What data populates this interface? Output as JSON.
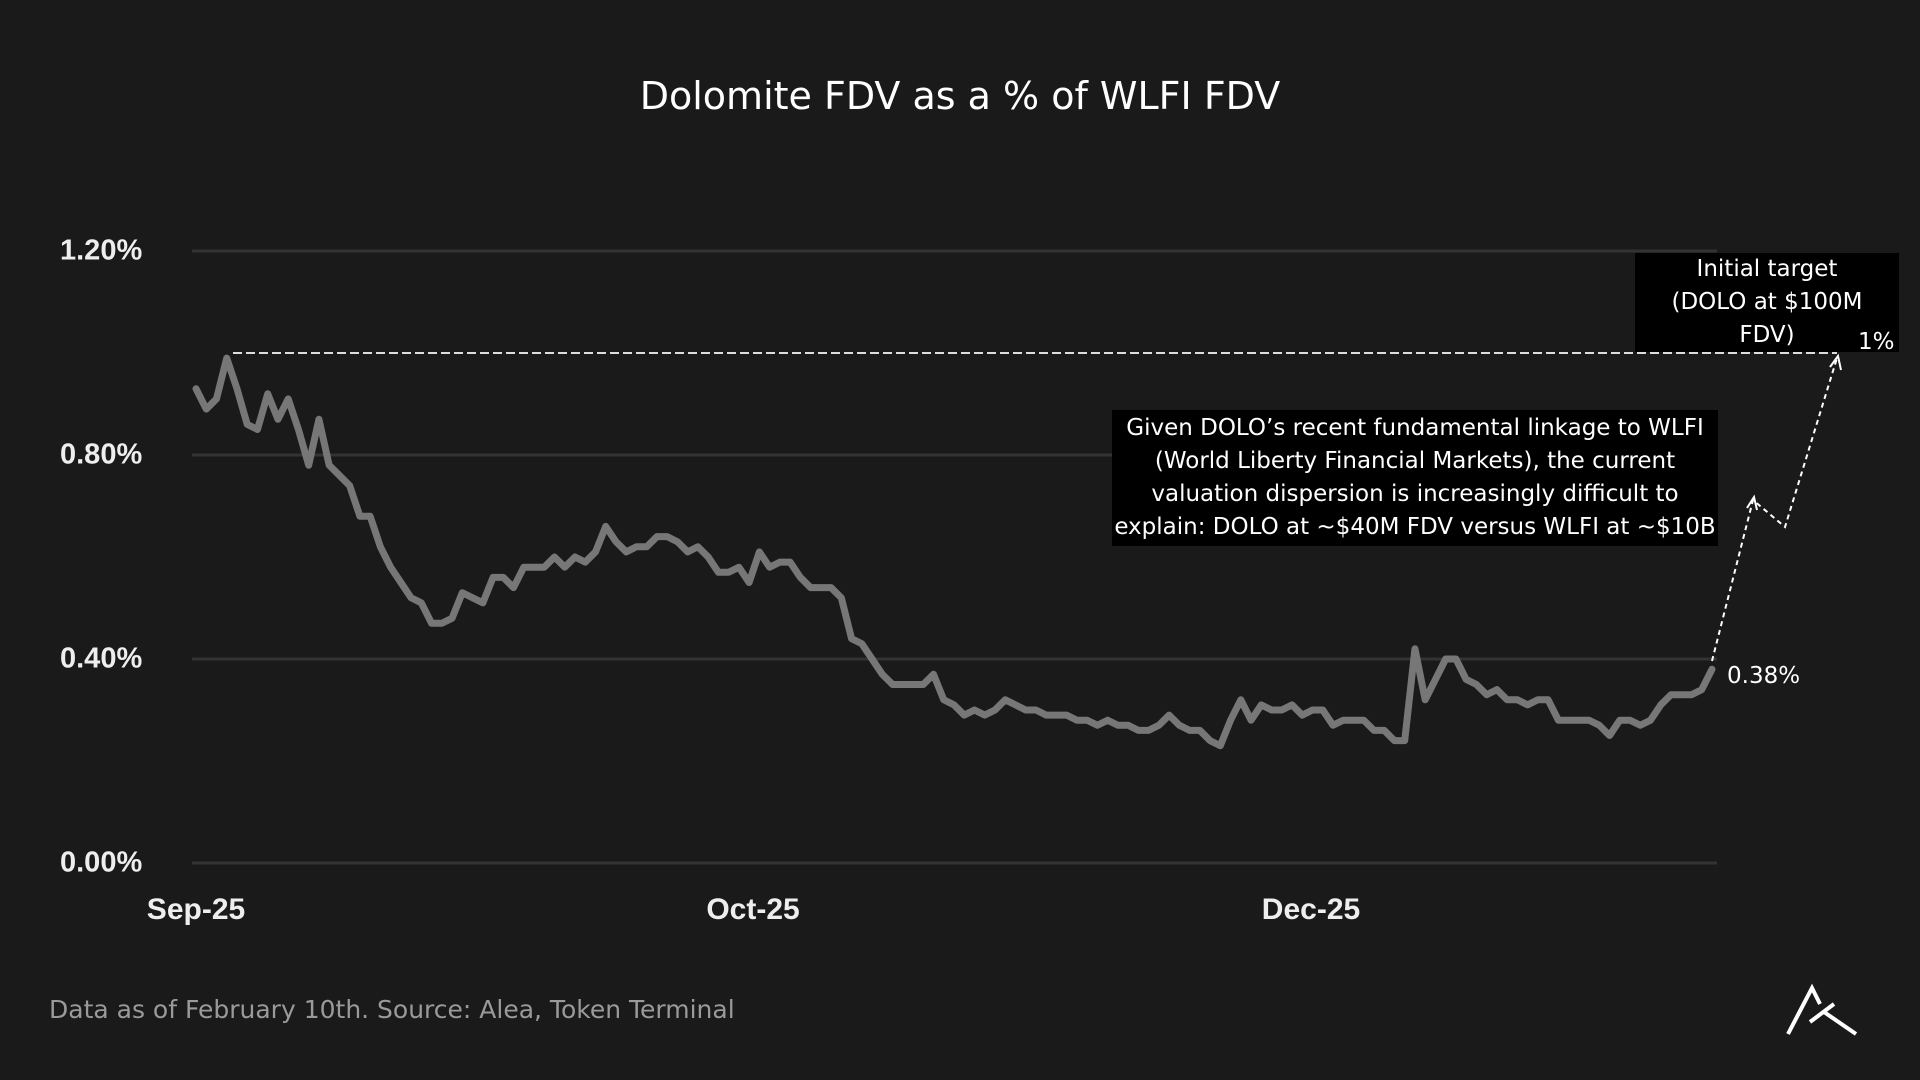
{
  "chart_data": {
    "type": "line",
    "title": "Dolomite FDV as a % of WLFI FDV",
    "xlabel": "",
    "ylabel": "",
    "ylim": [
      0,
      1.2
    ],
    "y_ticks": [
      "0.00%",
      "0.40%",
      "0.80%",
      "1.20%"
    ],
    "x_ticks": [
      "Sep-25",
      "Oct-25",
      "Dec-25"
    ],
    "grid": "horizontal",
    "line_color": "#777777",
    "unit": "%",
    "values": [
      0.93,
      0.89,
      0.91,
      0.99,
      0.93,
      0.86,
      0.85,
      0.92,
      0.87,
      0.91,
      0.85,
      0.78,
      0.87,
      0.78,
      0.76,
      0.74,
      0.68,
      0.68,
      0.62,
      0.58,
      0.55,
      0.52,
      0.51,
      0.47,
      0.47,
      0.48,
      0.53,
      0.52,
      0.51,
      0.56,
      0.56,
      0.54,
      0.58,
      0.58,
      0.58,
      0.6,
      0.58,
      0.6,
      0.59,
      0.61,
      0.66,
      0.63,
      0.61,
      0.62,
      0.62,
      0.64,
      0.64,
      0.63,
      0.61,
      0.62,
      0.6,
      0.57,
      0.57,
      0.58,
      0.55,
      0.61,
      0.58,
      0.59,
      0.59,
      0.56,
      0.54,
      0.54,
      0.54,
      0.52,
      0.44,
      0.43,
      0.4,
      0.37,
      0.35,
      0.35,
      0.35,
      0.35,
      0.37,
      0.32,
      0.31,
      0.29,
      0.3,
      0.29,
      0.3,
      0.32,
      0.31,
      0.3,
      0.3,
      0.29,
      0.29,
      0.29,
      0.28,
      0.28,
      0.27,
      0.28,
      0.27,
      0.27,
      0.26,
      0.26,
      0.27,
      0.29,
      0.27,
      0.26,
      0.26,
      0.24,
      0.23,
      0.28,
      0.32,
      0.28,
      0.31,
      0.3,
      0.3,
      0.31,
      0.29,
      0.3,
      0.3,
      0.27,
      0.28,
      0.28,
      0.28,
      0.26,
      0.26,
      0.24,
      0.24,
      0.42,
      0.32,
      0.36,
      0.4,
      0.4,
      0.36,
      0.35,
      0.33,
      0.34,
      0.32,
      0.32,
      0.31,
      0.32,
      0.32,
      0.28,
      0.28,
      0.28,
      0.28,
      0.27,
      0.25,
      0.28,
      0.28,
      0.27,
      0.28,
      0.31,
      0.33,
      0.33,
      0.33,
      0.34,
      0.38
    ],
    "reference_line": {
      "value": 1.0,
      "label": "1%",
      "style": "dashed"
    },
    "annotations": {
      "target": [
        "Initial target",
        "(DOLO at $100M FDV)"
      ],
      "note": [
        "Given DOLO’s recent fundamental linkage to WLFI",
        "(World Liberty Financial Markets), the current",
        "valuation dispersion is increasingly difficult to",
        "explain: DOLO at ~$40M FDV versus WLFI at ~$10B"
      ],
      "last_value": "0.38%"
    }
  },
  "footnote": "Data as of February 10th. Source: Alea, Token Terminal",
  "logo": "Alea"
}
